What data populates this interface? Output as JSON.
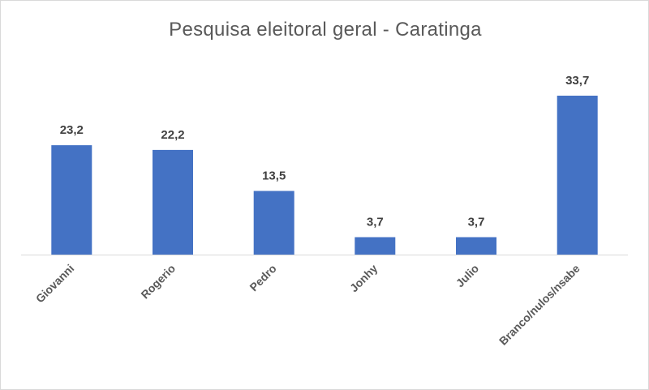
{
  "chart_data": {
    "type": "bar",
    "title": "Pesquisa eleitoral geral - Caratinga",
    "categories": [
      "Giovanni",
      "Rogerio",
      "Pedro",
      "Jonhy",
      "Julio",
      "Branco/nulos/nsabe"
    ],
    "values": [
      23.2,
      22.2,
      13.5,
      3.7,
      3.7,
      33.7
    ],
    "value_labels": [
      "23,2",
      "22,2",
      "13,5",
      "3,7",
      "3,7",
      "33,7"
    ],
    "ylim": [
      0,
      33.7
    ],
    "grid": false,
    "legend": "none",
    "xlabel": "",
    "ylabel": "",
    "colors": {
      "bar": "#4472c4",
      "axis": "#d9d9d9",
      "text": "#595959"
    }
  }
}
